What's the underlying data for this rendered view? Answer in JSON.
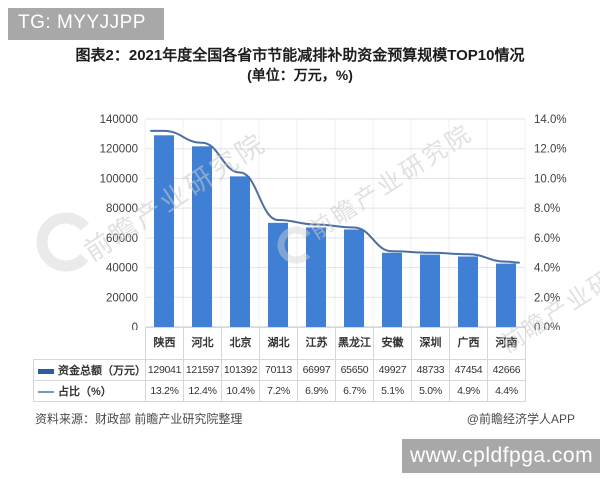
{
  "badge": {
    "label": "TG: MYYJJPP"
  },
  "title": {
    "line1": "图表2：2021年度全国各省市节能减排补助资金预算规模TOP10情况",
    "line2": "(单位：万元，%)"
  },
  "chart_data": {
    "type": "bar",
    "subtype": "bar+line combo with data table",
    "categories": [
      "陕西",
      "河北",
      "北京",
      "湖北",
      "江苏",
      "黑龙江",
      "安徽",
      "深圳",
      "广西",
      "河南"
    ],
    "series": [
      {
        "name": "资金总额（万元）",
        "type": "bar",
        "axis": "left",
        "color": "#3f80d4",
        "values": [
          129041,
          121597,
          101392,
          70113,
          66997,
          65650,
          49927,
          48733,
          47454,
          42666
        ]
      },
      {
        "name": "占比（%）",
        "type": "line",
        "axis": "right",
        "color": "#4c6fa3",
        "values": [
          13.2,
          12.4,
          10.4,
          7.2,
          6.9,
          6.7,
          5.1,
          5.0,
          4.9,
          4.4
        ]
      }
    ],
    "left_axis": {
      "min": 0,
      "max": 140000,
      "step": 20000,
      "tick_labels": [
        "140000",
        "120000",
        "100000",
        "80000",
        "60000",
        "40000",
        "20000",
        "0"
      ]
    },
    "right_axis": {
      "min": 0,
      "max": 14,
      "step": 2,
      "tick_labels": [
        "14.0%",
        "12.0%",
        "10.0%",
        "8.0%",
        "6.0%",
        "4.0%",
        "2.0%",
        "0.0%"
      ]
    },
    "grid": true,
    "legend_position": "left of attached data table"
  },
  "table": {
    "rows": [
      {
        "label": "资金总额（万元）",
        "marker": "thick-line",
        "marker_color": "#2e5d9e",
        "values": [
          "129041",
          "121597",
          "101392",
          "70113",
          "66997",
          "65650",
          "49927",
          "48733",
          "47454",
          "42666"
        ]
      },
      {
        "label": "占比（%）",
        "marker": "thin-line",
        "marker_color": "#7c97b8",
        "values": [
          "13.2%",
          "12.4%",
          "10.4%",
          "7.2%",
          "6.9%",
          "6.7%",
          "5.1%",
          "5.0%",
          "4.9%",
          "4.4%"
        ]
      }
    ]
  },
  "watermark": {
    "brand_text": "前瞻产业研究院"
  },
  "footer": {
    "source": "资料来源：财政部 前瞻产业研究院整理",
    "credit": "@前瞻经济学人APP"
  },
  "overlay": {
    "site_url": "www.cpldfpga.com"
  },
  "colors": {
    "bar": "#3f80d4",
    "trend_line": "#4c6fa3",
    "badge_bg": "#a8a8a8",
    "url_box_bg": "#a8a8a8",
    "grid": "#e3e3e3",
    "table_border": "#d6d6d6",
    "watermark": "#c9c9c9",
    "text": "#333333"
  }
}
